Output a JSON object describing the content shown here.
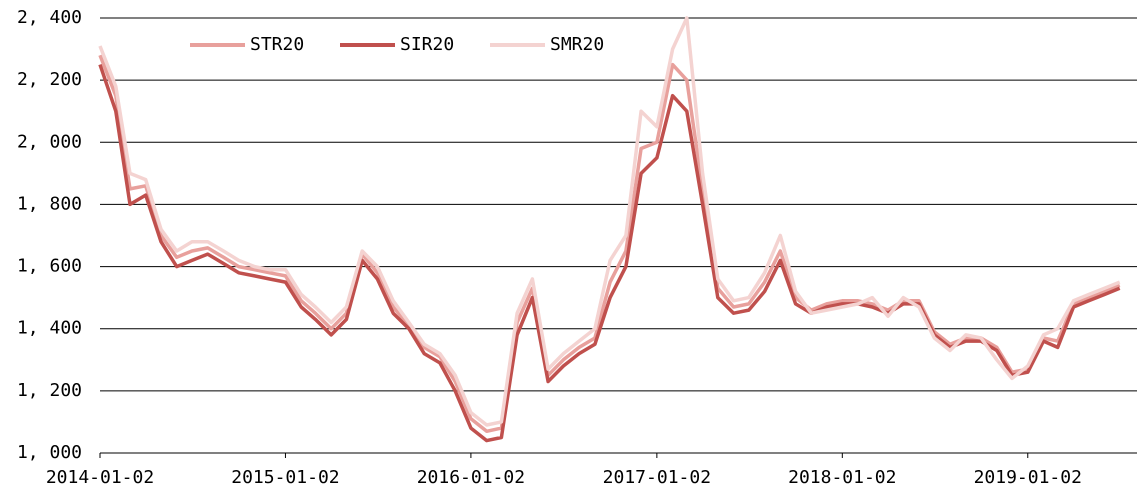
{
  "chart_data": {
    "type": "line",
    "legend": "upper left",
    "grid": true,
    "x": [
      "2014-01-02",
      "2014-02-02",
      "2014-03-02",
      "2014-04-02",
      "2014-05-02",
      "2014-06-02",
      "2014-07-02",
      "2014-08-02",
      "2014-09-02",
      "2014-10-02",
      "2014-11-02",
      "2014-12-02",
      "2015-01-02",
      "2015-02-02",
      "2015-03-02",
      "2015-04-02",
      "2015-05-02",
      "2015-06-02",
      "2015-07-02",
      "2015-08-02",
      "2015-09-02",
      "2015-10-02",
      "2015-11-02",
      "2015-12-02",
      "2016-01-02",
      "2016-02-02",
      "2016-03-02",
      "2016-04-02",
      "2016-05-02",
      "2016-06-02",
      "2016-07-02",
      "2016-08-02",
      "2016-09-02",
      "2016-10-02",
      "2016-11-02",
      "2016-12-02",
      "2017-01-02",
      "2017-02-02",
      "2017-03-02",
      "2017-04-02",
      "2017-05-02",
      "2017-06-02",
      "2017-07-02",
      "2017-08-02",
      "2017-09-02",
      "2017-10-02",
      "2017-11-02",
      "2017-12-02",
      "2018-01-02",
      "2018-02-02",
      "2018-03-02",
      "2018-04-02",
      "2018-05-02",
      "2018-06-02",
      "2018-07-02",
      "2018-08-02",
      "2018-09-02",
      "2018-10-02",
      "2018-11-02",
      "2018-12-02",
      "2019-01-02",
      "2019-02-02",
      "2019-03-02",
      "2019-04-02",
      "2019-05-02",
      "2019-06-02",
      "2019-07-02"
    ],
    "series": [
      {
        "name": "STR20",
        "color": "#e8a09c",
        "values": [
          2280,
          2150,
          1850,
          1860,
          1700,
          1630,
          1650,
          1660,
          1630,
          1600,
          1590,
          1580,
          1570,
          1490,
          1450,
          1400,
          1450,
          1640,
          1580,
          1470,
          1410,
          1340,
          1310,
          1230,
          1110,
          1070,
          1080,
          1420,
          1530,
          1250,
          1300,
          1340,
          1370,
          1550,
          1650,
          1980,
          2000,
          2250,
          2200,
          1850,
          1530,
          1470,
          1480,
          1550,
          1650,
          1500,
          1460,
          1480,
          1490,
          1490,
          1480,
          1460,
          1490,
          1490,
          1390,
          1350,
          1370,
          1370,
          1340,
          1260,
          1270,
          1370,
          1360,
          1480,
          1500,
          1520,
          1540
        ]
      },
      {
        "name": "SIR20",
        "color": "#c0504d",
        "values": [
          2250,
          2100,
          1800,
          1830,
          1680,
          1600,
          1620,
          1640,
          1610,
          1580,
          1570,
          1560,
          1550,
          1470,
          1430,
          1380,
          1430,
          1620,
          1560,
          1450,
          1400,
          1320,
          1290,
          1200,
          1080,
          1040,
          1050,
          1380,
          1500,
          1230,
          1280,
          1320,
          1350,
          1500,
          1600,
          1900,
          1950,
          2150,
          2100,
          1800,
          1500,
          1450,
          1460,
          1520,
          1620,
          1480,
          1450,
          1470,
          1480,
          1480,
          1470,
          1450,
          1480,
          1480,
          1380,
          1340,
          1360,
          1360,
          1330,
          1250,
          1260,
          1360,
          1340,
          1470,
          1490,
          1510,
          1530
        ]
      },
      {
        "name": "SMR20",
        "color": "#f4d3d1",
        "values": [
          2310,
          2180,
          1900,
          1880,
          1720,
          1650,
          1680,
          1680,
          1650,
          1620,
          1600,
          1590,
          1590,
          1510,
          1470,
          1420,
          1470,
          1650,
          1600,
          1490,
          1420,
          1350,
          1320,
          1250,
          1130,
          1090,
          1100,
          1450,
          1560,
          1270,
          1320,
          1360,
          1400,
          1620,
          1700,
          2100,
          2050,
          2300,
          2400,
          1900,
          1560,
          1490,
          1500,
          1580,
          1700,
          1520,
          1450,
          1460,
          1470,
          1480,
          1500,
          1440,
          1500,
          1470,
          1370,
          1330,
          1380,
          1370,
          1300,
          1240,
          1280,
          1380,
          1400,
          1490,
          1510,
          1530,
          1550
        ]
      }
    ],
    "xlim": [
      "2014-01-02",
      "2019-08-05"
    ],
    "xticks": [
      "2014-01-02",
      "2015-01-02",
      "2016-01-02",
      "2017-01-02",
      "2018-01-02",
      "2019-01-02"
    ],
    "ylim": [
      1000,
      2400
    ],
    "yticks": [
      {
        "value": 1000,
        "label": "1, 000"
      },
      {
        "value": 1200,
        "label": "1, 200"
      },
      {
        "value": 1400,
        "label": "1, 400"
      },
      {
        "value": 1600,
        "label": "1, 600"
      },
      {
        "value": 1800,
        "label": "1, 800"
      },
      {
        "value": 2000,
        "label": "2, 000"
      },
      {
        "value": 2200,
        "label": "2, 200"
      },
      {
        "value": 2400,
        "label": "2, 400"
      }
    ]
  }
}
